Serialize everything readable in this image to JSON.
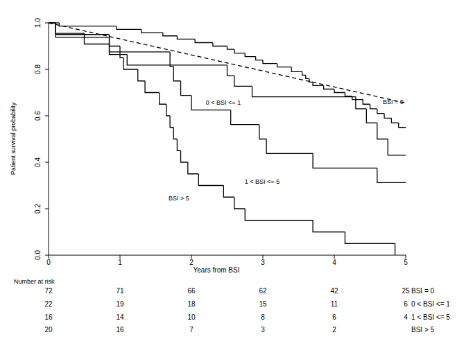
{
  "chart_data": {
    "type": "step",
    "xlabel": "Years from BSI",
    "ylabel": "Patient survival probability",
    "xlim": [
      0,
      5
    ],
    "ylim": [
      0,
      1
    ],
    "xticks": [
      0,
      1,
      2,
      3,
      4,
      5
    ],
    "yticks": [
      {
        "value": 0,
        "label": "0.0"
      },
      0.2,
      0.4,
      0.6,
      0.8,
      {
        "value": 1,
        "label": "1.0"
      }
    ],
    "grid": false,
    "series": [
      {
        "name": "BSI = 0",
        "color": "#000000",
        "x": [
          0,
          0.15,
          0.95,
          1.3,
          1.6,
          1.8,
          2.05,
          2.3,
          2.5,
          2.6,
          2.75,
          2.9,
          3.0,
          3.2,
          3.4,
          3.55,
          3.6,
          3.65,
          3.7,
          3.85,
          4.0,
          4.15,
          4.25,
          4.4,
          4.5,
          4.6,
          4.7,
          4.8,
          4.9,
          5.0
        ],
        "values": [
          1,
          0.986,
          0.972,
          0.958,
          0.944,
          0.93,
          0.915,
          0.9,
          0.886,
          0.87,
          0.855,
          0.84,
          0.825,
          0.81,
          0.79,
          0.775,
          0.76,
          0.745,
          0.73,
          0.715,
          0.7,
          0.685,
          0.67,
          0.65,
          0.63,
          0.61,
          0.59,
          0.57,
          0.55,
          0.55
        ]
      },
      {
        "name": "0 < BSI <= 1",
        "color": "#000000",
        "x": [
          0,
          0.1,
          0.5,
          0.85,
          1.1,
          2.5,
          2.6,
          2.85,
          4.3,
          4.45,
          4.6,
          4.75,
          5.0
        ],
        "values": [
          1,
          0.955,
          0.909,
          0.864,
          0.818,
          0.773,
          0.727,
          0.682,
          0.63,
          0.57,
          0.5,
          0.43,
          0.43
        ]
      },
      {
        "name": "1 < BSI <= 5",
        "color": "#000000",
        "x": [
          0,
          0.1,
          0.85,
          1.7,
          1.75,
          1.85,
          2.0,
          2.55,
          2.95,
          3.05,
          3.7,
          4.6,
          5.0
        ],
        "values": [
          1,
          0.9375,
          0.875,
          0.8125,
          0.75,
          0.6875,
          0.625,
          0.5625,
          0.5,
          0.4375,
          0.375,
          0.3125,
          0.3125
        ]
      },
      {
        "name": "BSI > 5",
        "color": "#000000",
        "x": [
          0,
          0.1,
          0.85,
          1.0,
          1.05,
          1.25,
          1.35,
          1.55,
          1.65,
          1.7,
          1.75,
          1.8,
          1.85,
          1.95,
          2.1,
          2.45,
          2.6,
          2.75,
          3.7,
          4.15,
          4.85
        ],
        "values": [
          1,
          0.95,
          0.9,
          0.85,
          0.8,
          0.75,
          0.7,
          0.65,
          0.6,
          0.55,
          0.5,
          0.45,
          0.4,
          0.35,
          0.3,
          0.25,
          0.2,
          0.15,
          0.1,
          0.05,
          0
        ]
      },
      {
        "type": "line",
        "line_style": "dashed",
        "color": "#000000",
        "x": [
          0,
          5
        ],
        "values": [
          1,
          0.655
        ]
      }
    ],
    "risk_table": {
      "title": "Number at risk",
      "x": [
        0,
        1,
        2,
        3,
        4,
        5
      ],
      "rows": [
        [
          72,
          71,
          66,
          62,
          42,
          25
        ],
        [
          22,
          19,
          18,
          15,
          11,
          6
        ],
        [
          16,
          14,
          10,
          8,
          6,
          4
        ],
        [
          20,
          16,
          7,
          3,
          2,
          null
        ]
      ]
    }
  }
}
